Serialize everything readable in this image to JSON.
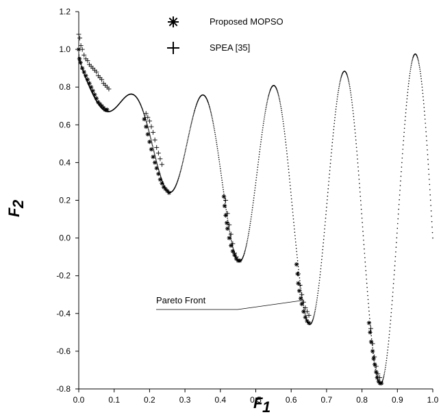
{
  "chart_data": {
    "type": "scatter",
    "title": "",
    "xlabel": "F",
    "xlabel_sub": "1",
    "ylabel": "F",
    "ylabel_sub": "2",
    "xlim": [
      0.0,
      1.0
    ],
    "ylim": [
      -0.8,
      1.2
    ],
    "xticks": [
      "0.0",
      "0.1",
      "0.2",
      "0.3",
      "0.4",
      "0.5",
      "0.6",
      "0.7",
      "0.8",
      "0.9",
      "1.0"
    ],
    "yticks": [
      "-0.8",
      "-0.6",
      "-0.4",
      "-0.2",
      "0.0",
      "0.2",
      "0.4",
      "0.6",
      "0.8",
      "1.0",
      "1.2"
    ],
    "grid": false,
    "legend_position": "top-center",
    "curve": {
      "function": "1 - sqrt(F1) - F1*sin(10*pi*F1)",
      "style": "dotted"
    },
    "series": [
      {
        "name": "Proposed MOPSO",
        "marker": "asterisk",
        "points": [
          [
            0.0,
            1.0
          ],
          [
            0.002,
            0.95
          ],
          [
            0.005,
            0.93
          ],
          [
            0.01,
            0.9
          ],
          [
            0.015,
            0.88
          ],
          [
            0.02,
            0.86
          ],
          [
            0.025,
            0.84
          ],
          [
            0.03,
            0.82
          ],
          [
            0.035,
            0.8
          ],
          [
            0.04,
            0.78
          ],
          [
            0.045,
            0.76
          ],
          [
            0.05,
            0.74
          ],
          [
            0.055,
            0.72
          ],
          [
            0.06,
            0.71
          ],
          [
            0.065,
            0.7
          ],
          [
            0.07,
            0.69
          ],
          [
            0.075,
            0.68
          ],
          [
            0.08,
            0.68
          ],
          [
            0.185,
            0.63
          ],
          [
            0.19,
            0.59
          ],
          [
            0.195,
            0.55
          ],
          [
            0.2,
            0.51
          ],
          [
            0.205,
            0.47
          ],
          [
            0.21,
            0.43
          ],
          [
            0.215,
            0.4
          ],
          [
            0.22,
            0.37
          ],
          [
            0.225,
            0.34
          ],
          [
            0.23,
            0.31
          ],
          [
            0.235,
            0.29
          ],
          [
            0.24,
            0.27
          ],
          [
            0.245,
            0.26
          ],
          [
            0.25,
            0.25
          ],
          [
            0.255,
            0.24
          ],
          [
            0.41,
            0.22
          ],
          [
            0.412,
            0.17
          ],
          [
            0.415,
            0.12
          ],
          [
            0.418,
            0.08
          ],
          [
            0.42,
            0.05
          ],
          [
            0.425,
            0.0
          ],
          [
            0.43,
            -0.04
          ],
          [
            0.435,
            -0.07
          ],
          [
            0.44,
            -0.09
          ],
          [
            0.445,
            -0.11
          ],
          [
            0.45,
            -0.12
          ],
          [
            0.455,
            -0.12
          ],
          [
            0.615,
            -0.14
          ],
          [
            0.618,
            -0.19
          ],
          [
            0.62,
            -0.24
          ],
          [
            0.623,
            -0.28
          ],
          [
            0.627,
            -0.32
          ],
          [
            0.63,
            -0.35
          ],
          [
            0.635,
            -0.39
          ],
          [
            0.64,
            -0.42
          ],
          [
            0.645,
            -0.44
          ],
          [
            0.65,
            -0.45
          ],
          [
            0.82,
            -0.45
          ],
          [
            0.823,
            -0.5
          ],
          [
            0.826,
            -0.55
          ],
          [
            0.83,
            -0.6
          ],
          [
            0.833,
            -0.64
          ],
          [
            0.836,
            -0.67
          ],
          [
            0.84,
            -0.71
          ],
          [
            0.843,
            -0.74
          ],
          [
            0.847,
            -0.76
          ],
          [
            0.851,
            -0.77
          ],
          [
            0.855,
            -0.77
          ]
        ]
      },
      {
        "name": "SPEA [35]",
        "marker": "plus",
        "points": [
          [
            0.0,
            1.08
          ],
          [
            0.003,
            1.06
          ],
          [
            0.006,
            1.02
          ],
          [
            0.01,
            1.0
          ],
          [
            0.015,
            0.97
          ],
          [
            0.02,
            0.95
          ],
          [
            0.025,
            0.94
          ],
          [
            0.03,
            0.92
          ],
          [
            0.035,
            0.91
          ],
          [
            0.04,
            0.9
          ],
          [
            0.045,
            0.89
          ],
          [
            0.05,
            0.88
          ],
          [
            0.055,
            0.86
          ],
          [
            0.06,
            0.85
          ],
          [
            0.065,
            0.84
          ],
          [
            0.07,
            0.82
          ],
          [
            0.075,
            0.81
          ],
          [
            0.08,
            0.8
          ],
          [
            0.085,
            0.79
          ],
          [
            0.19,
            0.66
          ],
          [
            0.195,
            0.64
          ],
          [
            0.2,
            0.62
          ],
          [
            0.205,
            0.59
          ],
          [
            0.21,
            0.56
          ],
          [
            0.215,
            0.52
          ],
          [
            0.22,
            0.48
          ],
          [
            0.225,
            0.45
          ],
          [
            0.23,
            0.42
          ],
          [
            0.235,
            0.39
          ],
          [
            0.415,
            0.2
          ],
          [
            0.42,
            0.13
          ],
          [
            0.425,
            0.07
          ],
          [
            0.43,
            0.02
          ],
          [
            0.435,
            -0.03
          ],
          [
            0.44,
            -0.08
          ],
          [
            0.445,
            -0.1
          ],
          [
            0.62,
            -0.19
          ],
          [
            0.625,
            -0.25
          ],
          [
            0.63,
            -0.3
          ],
          [
            0.635,
            -0.34
          ],
          [
            0.64,
            -0.37
          ],
          [
            0.645,
            -0.39
          ],
          [
            0.65,
            -0.41
          ],
          [
            0.825,
            -0.48
          ],
          [
            0.83,
            -0.56
          ],
          [
            0.835,
            -0.63
          ],
          [
            0.84,
            -0.68
          ],
          [
            0.845,
            -0.72
          ],
          [
            0.85,
            -0.74
          ]
        ]
      }
    ],
    "annotations": [
      {
        "text": "Pareto Front",
        "target": [
          0.635,
          -0.33
        ]
      }
    ]
  }
}
